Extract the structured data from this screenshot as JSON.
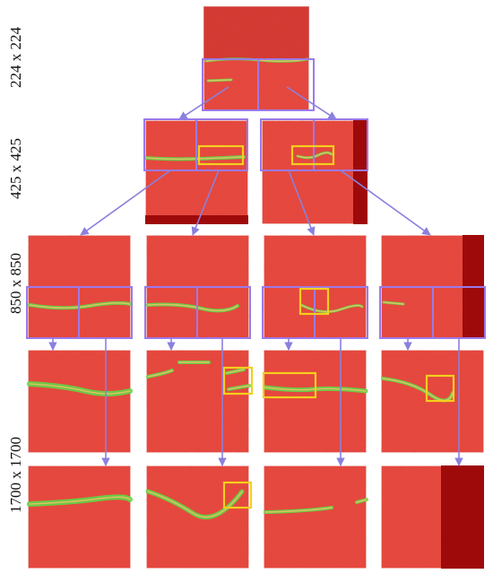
{
  "rows": [
    {
      "label": "224 x 224"
    },
    {
      "label": "425 x 425"
    },
    {
      "label": "850 x 850"
    },
    {
      "label": "1700 x 1700"
    }
  ],
  "colors": {
    "tissue": "#ec4a3e",
    "tissue_dark": "#c5302a",
    "tissue_deep": "#9e0a0a",
    "tile_frame": "#ffffff",
    "split_box": "#9b7ae8",
    "arrow": "#8a80de",
    "highlight_box": "#f4cf1d",
    "lesion_green": "#5ed845",
    "lesion_core": "#e8c26a"
  }
}
